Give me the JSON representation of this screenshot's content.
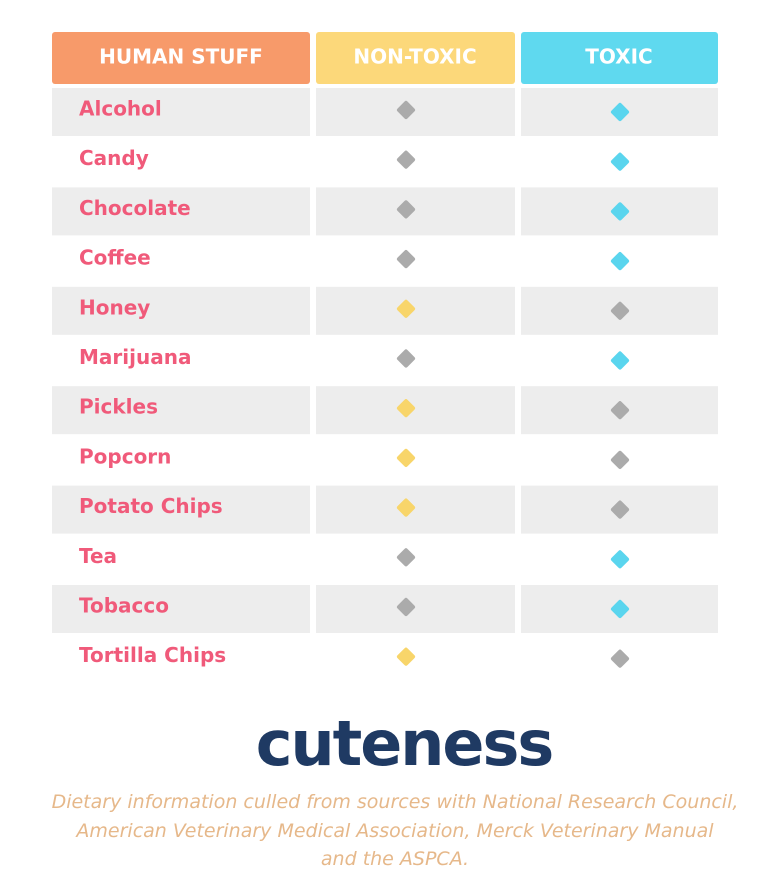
{
  "table": {
    "header": [
      "HUMAN STUFF",
      "NON-TOXIC",
      "TOXIC"
    ],
    "rows": [
      {
        "item": "Alcohol",
        "toxic": true
      },
      {
        "item": "Candy",
        "toxic": true
      },
      {
        "item": "Chocolate",
        "toxic": true
      },
      {
        "item": "Coffee",
        "toxic": true
      },
      {
        "item": "Honey",
        "toxic": false
      },
      {
        "item": "Marijuana",
        "toxic": true
      },
      {
        "item": "Pickles",
        "toxic": false
      },
      {
        "item": "Popcorn",
        "toxic": false
      },
      {
        "item": "Potato Chips",
        "toxic": false
      },
      {
        "item": "Tea",
        "toxic": true
      },
      {
        "item": "Tobacco",
        "toxic": true
      },
      {
        "item": "Tortilla Chips",
        "toxic": false
      }
    ]
  },
  "logo": "cuteness",
  "footer": [
    "Dietary information culled from sources with National Research Council,",
    "American Veterinary Medical Association, Merck Veterinary Manual",
    "and the ASPCA."
  ]
}
